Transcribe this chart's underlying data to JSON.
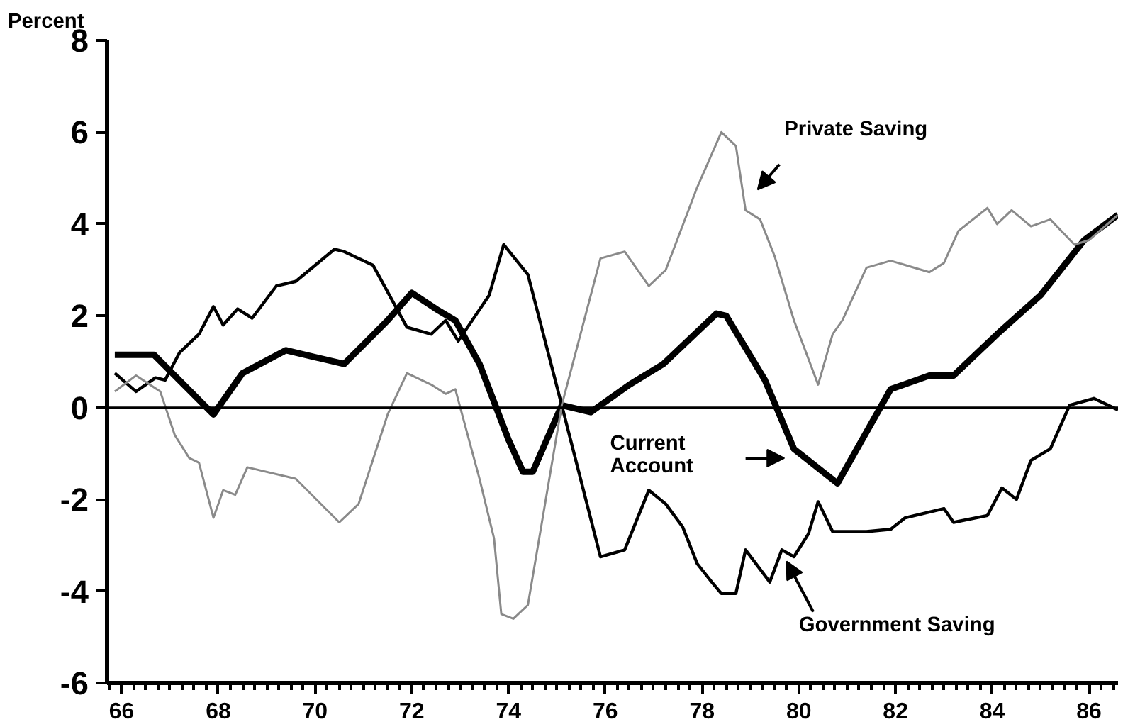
{
  "chart_data": {
    "type": "line",
    "ylabel": "Percent",
    "xlim": [
      65.7,
      86.6
    ],
    "xticks": [
      66,
      68,
      70,
      72,
      74,
      76,
      78,
      80,
      82,
      84,
      86
    ],
    "ylim": [
      -6,
      8
    ],
    "yticks": [
      -6,
      -4,
      -2,
      0,
      2,
      4,
      6,
      8
    ],
    "grid": false,
    "legend": false,
    "marker": "none",
    "line_style": "solid",
    "ref_lines": [
      {
        "axis": "y",
        "value": 0,
        "color": "#000000"
      }
    ],
    "series": [
      {
        "name": "Current Account",
        "color": "#000000",
        "x": [
          65.86,
          66.67,
          67.9,
          68.5,
          69.4,
          70.0,
          70.6,
          71.5,
          72.0,
          72.5,
          72.9,
          73.4,
          74.0,
          74.3,
          74.5,
          75.1,
          75.7,
          76.5,
          77.2,
          78.3,
          78.5,
          79.3,
          79.9,
          80.8,
          81.9,
          82.7,
          83.2,
          84.1,
          85.0,
          85.9,
          86.6
        ],
        "values": [
          1.15,
          1.15,
          -0.15,
          0.75,
          1.25,
          1.1,
          0.95,
          1.9,
          2.5,
          2.15,
          1.9,
          0.95,
          -0.7,
          -1.4,
          -1.4,
          0.05,
          -0.1,
          0.5,
          0.95,
          2.05,
          2.0,
          0.6,
          -0.9,
          -1.65,
          0.4,
          0.7,
          0.7,
          1.6,
          2.45,
          3.65,
          4.2
        ]
      },
      {
        "name": "Government Saving",
        "color": "#000000",
        "x": [
          65.86,
          66.3,
          66.7,
          66.9,
          67.2,
          67.6,
          67.9,
          68.1,
          68.4,
          68.7,
          69.2,
          69.6,
          70.4,
          70.6,
          71.2,
          71.9,
          72.4,
          72.7,
          72.96,
          73.6,
          73.9,
          74.4,
          75.1,
          75.9,
          76.4,
          76.9,
          77.25,
          77.6,
          77.9,
          78.2,
          78.4,
          78.7,
          78.9,
          79.4,
          79.65,
          79.9,
          80.2,
          80.4,
          80.7,
          81.4,
          81.9,
          82.2,
          83.0,
          83.2,
          83.9,
          84.2,
          84.5,
          84.8,
          85.2,
          85.6,
          86.1,
          86.6
        ],
        "values": [
          0.75,
          0.35,
          0.65,
          0.6,
          1.2,
          1.6,
          2.2,
          1.8,
          2.15,
          1.95,
          2.65,
          2.75,
          3.45,
          3.4,
          3.1,
          1.75,
          1.6,
          1.9,
          1.45,
          2.45,
          3.55,
          2.9,
          0.05,
          -3.25,
          -3.1,
          -1.8,
          -2.1,
          -2.6,
          -3.4,
          -3.8,
          -4.05,
          -4.05,
          -3.1,
          -3.8,
          -3.1,
          -3.25,
          -2.75,
          -2.05,
          -2.7,
          -2.7,
          -2.65,
          -2.4,
          -2.2,
          -2.5,
          -2.35,
          -1.75,
          -2.0,
          -1.15,
          -0.9,
          0.05,
          0.2,
          -0.05
        ]
      },
      {
        "name": "Private Saving",
        "color": "#8a8a8a",
        "x": [
          65.86,
          66.3,
          66.8,
          67.1,
          67.4,
          67.6,
          67.9,
          68.1,
          68.35,
          68.6,
          69.6,
          70.5,
          70.9,
          71.5,
          71.9,
          72.4,
          72.7,
          72.9,
          73.4,
          73.7,
          73.85,
          74.1,
          74.4,
          75.1,
          75.9,
          76.4,
          76.9,
          77.25,
          77.9,
          78.4,
          78.7,
          78.9,
          79.2,
          79.5,
          79.9,
          80.4,
          80.7,
          80.9,
          81.4,
          81.9,
          82.7,
          83.0,
          83.3,
          83.9,
          84.1,
          84.4,
          84.8,
          85.2,
          85.7,
          86.0,
          86.6
        ],
        "values": [
          0.35,
          0.7,
          0.35,
          -0.6,
          -1.1,
          -1.2,
          -2.4,
          -1.8,
          -1.9,
          -1.3,
          -1.55,
          -2.5,
          -2.1,
          -0.15,
          0.75,
          0.5,
          0.3,
          0.4,
          -1.55,
          -2.85,
          -4.5,
          -4.6,
          -4.3,
          0.05,
          3.25,
          3.4,
          2.65,
          3.0,
          4.8,
          6.0,
          5.7,
          4.3,
          4.1,
          3.3,
          1.9,
          0.5,
          1.6,
          1.9,
          3.05,
          3.2,
          2.95,
          3.15,
          3.85,
          4.35,
          4.0,
          4.3,
          3.95,
          4.1,
          3.55,
          3.65,
          4.2
        ]
      }
    ]
  }
}
